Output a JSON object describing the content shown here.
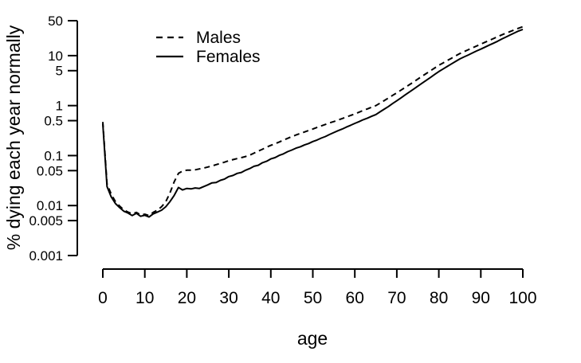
{
  "figure": {
    "background_color": "#ffffff",
    "line_color": "#000000"
  },
  "chart_data": {
    "type": "line",
    "title": "",
    "xlabel": "age",
    "ylabel": "% dying each year normally",
    "grid": false,
    "x_axis": {
      "min": 0,
      "max": 100,
      "ticks": [
        0,
        10,
        20,
        30,
        40,
        50,
        60,
        70,
        80,
        90,
        100
      ],
      "tick_labels": [
        "0",
        "10",
        "20",
        "30",
        "40",
        "50",
        "60",
        "70",
        "80",
        "90",
        "100"
      ]
    },
    "y_axis": {
      "scale": "log",
      "min": 0.001,
      "max": 50,
      "ticks": [
        50,
        10,
        5,
        1,
        0.5,
        0.1,
        0.05,
        0.01,
        0.005,
        0.001
      ],
      "tick_labels": [
        "50",
        "10",
        "5",
        "1",
        "0.5",
        "0.1",
        "0.05",
        "0.01",
        "0.005",
        "0.001"
      ]
    },
    "legend": {
      "position": "top-left-inside",
      "entries": [
        {
          "label": "Males",
          "line_style": "dashed"
        },
        {
          "label": "Females",
          "line_style": "solid"
        }
      ]
    },
    "x": [
      0,
      1,
      2,
      3,
      4,
      5,
      6,
      7,
      8,
      9,
      10,
      11,
      12,
      13,
      14,
      15,
      16,
      17,
      18,
      19,
      20,
      21,
      22,
      23,
      24,
      25,
      26,
      27,
      28,
      29,
      30,
      31,
      32,
      33,
      34,
      35,
      36,
      37,
      38,
      39,
      40,
      41,
      42,
      43,
      44,
      45,
      46,
      47,
      48,
      49,
      50,
      51,
      52,
      53,
      54,
      55,
      56,
      57,
      58,
      59,
      60,
      61,
      62,
      63,
      64,
      65,
      66,
      67,
      68,
      69,
      70,
      71,
      72,
      73,
      74,
      75,
      76,
      77,
      78,
      79,
      80,
      81,
      82,
      83,
      84,
      85,
      86,
      87,
      88,
      89,
      90,
      91,
      92,
      93,
      94,
      95,
      96,
      97,
      98,
      99,
      100
    ],
    "series": [
      {
        "name": "Males",
        "line_style": "dashed",
        "values": [
          0.47,
          0.027,
          0.017,
          0.012,
          0.0098,
          0.0082,
          0.0074,
          0.0068,
          0.0073,
          0.0065,
          0.0067,
          0.0063,
          0.0073,
          0.0081,
          0.0095,
          0.012,
          0.018,
          0.03,
          0.044,
          0.049,
          0.051,
          0.051,
          0.052,
          0.054,
          0.056,
          0.059,
          0.062,
          0.066,
          0.07,
          0.074,
          0.079,
          0.083,
          0.087,
          0.091,
          0.096,
          0.102,
          0.112,
          0.123,
          0.134,
          0.147,
          0.16,
          0.173,
          0.187,
          0.203,
          0.221,
          0.24,
          0.258,
          0.277,
          0.297,
          0.318,
          0.34,
          0.365,
          0.392,
          0.42,
          0.45,
          0.48,
          0.515,
          0.552,
          0.592,
          0.635,
          0.68,
          0.74,
          0.8,
          0.86,
          0.93,
          1.0,
          1.12,
          1.26,
          1.42,
          1.6,
          1.8,
          2.04,
          2.31,
          2.62,
          2.97,
          3.4,
          3.86,
          4.38,
          4.97,
          5.64,
          6.4,
          7.13,
          7.95,
          8.86,
          9.87,
          11.0,
          12.0,
          13.1,
          14.3,
          15.6,
          17.0,
          18.5,
          20.1,
          21.9,
          23.9,
          26.0,
          28.1,
          30.4,
          32.8,
          35.4,
          38.0
        ]
      },
      {
        "name": "Females",
        "line_style": "solid",
        "values": [
          0.43,
          0.024,
          0.015,
          0.011,
          0.0091,
          0.0077,
          0.0071,
          0.0063,
          0.007,
          0.0061,
          0.0064,
          0.0059,
          0.0068,
          0.0074,
          0.0081,
          0.0095,
          0.012,
          0.016,
          0.023,
          0.0205,
          0.022,
          0.0215,
          0.0225,
          0.022,
          0.024,
          0.026,
          0.0285,
          0.029,
          0.032,
          0.034,
          0.038,
          0.04,
          0.044,
          0.046,
          0.051,
          0.055,
          0.061,
          0.064,
          0.072,
          0.077,
          0.086,
          0.091,
          0.101,
          0.108,
          0.12,
          0.129,
          0.141,
          0.15,
          0.163,
          0.174,
          0.191,
          0.205,
          0.224,
          0.241,
          0.265,
          0.289,
          0.315,
          0.34,
          0.372,
          0.403,
          0.441,
          0.478,
          0.521,
          0.562,
          0.611,
          0.661,
          0.75,
          0.85,
          0.96,
          1.1,
          1.25,
          1.43,
          1.64,
          1.87,
          2.14,
          2.45,
          2.8,
          3.2,
          3.66,
          4.19,
          4.8,
          5.4,
          6.07,
          6.83,
          7.68,
          8.6,
          9.42,
          10.3,
          11.3,
          12.4,
          13.5,
          14.8,
          16.2,
          17.7,
          19.4,
          21.5,
          23.6,
          25.9,
          28.4,
          31.1,
          33.5
        ]
      }
    ]
  }
}
